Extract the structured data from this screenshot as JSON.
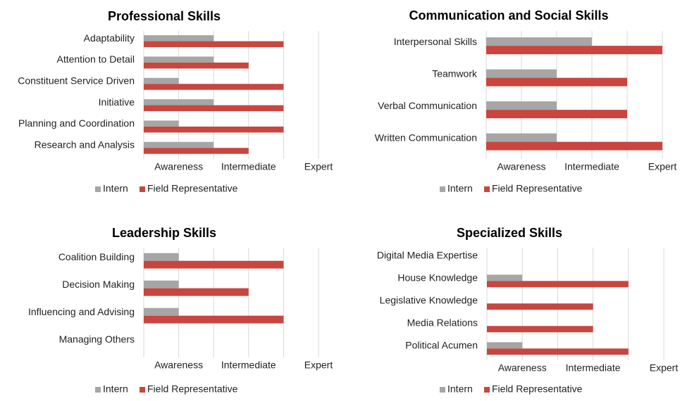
{
  "colors": {
    "intern": "#a6a6a6",
    "field_representative": "#c8463e",
    "grid": "#d9d9d9"
  },
  "chart_data": [
    {
      "type": "bar",
      "orientation": "horizontal",
      "title": "Professional Skills",
      "categories": [
        "Adaptability",
        "Attention to Detail",
        "Constituent Service Driven",
        "Initiative",
        "Planning and Coordination",
        "Research and Analysis"
      ],
      "series": [
        {
          "name": "Intern",
          "values": [
            2,
            2,
            1,
            2,
            1,
            2
          ]
        },
        {
          "name": "Field Representative",
          "values": [
            4,
            3,
            4,
            4,
            4,
            3
          ]
        }
      ],
      "tick_labels": [
        "Awareness",
        "Intermediate",
        "Expert"
      ],
      "xlim": [
        0,
        5
      ],
      "grid": true,
      "legend": "bottom"
    },
    {
      "type": "bar",
      "orientation": "horizontal",
      "title": "Communication and Social Skills",
      "categories": [
        "Interpersonal Skills",
        "Teamwork",
        "Verbal Communication",
        "Written Communication"
      ],
      "series": [
        {
          "name": "Intern",
          "values": [
            3,
            2,
            2,
            2
          ]
        },
        {
          "name": "Field Representative",
          "values": [
            5,
            4,
            4,
            5
          ]
        }
      ],
      "tick_labels": [
        "Awareness",
        "Intermediate",
        "Expert"
      ],
      "xlim": [
        0,
        5
      ],
      "grid": true,
      "legend": "bottom"
    },
    {
      "type": "bar",
      "orientation": "horizontal",
      "title": "Leadership Skills",
      "categories": [
        "Coalition Building",
        "Decision Making",
        "Influencing and Advising",
        "Managing Others"
      ],
      "series": [
        {
          "name": "Intern",
          "values": [
            1,
            1,
            1,
            0
          ]
        },
        {
          "name": "Field Representative",
          "values": [
            4,
            3,
            4,
            0
          ]
        }
      ],
      "tick_labels": [
        "Awareness",
        "Intermediate",
        "Expert"
      ],
      "xlim": [
        0,
        5
      ],
      "grid": true,
      "legend": "bottom"
    },
    {
      "type": "bar",
      "orientation": "horizontal",
      "title": "Specialized Skills",
      "categories": [
        "Digital Media Expertise",
        "House Knowledge",
        "Legislative Knowledge",
        "Media Relations",
        "Political Acumen"
      ],
      "series": [
        {
          "name": "Intern",
          "values": [
            0,
            1,
            0,
            0,
            1
          ]
        },
        {
          "name": "Field Representative",
          "values": [
            0,
            4,
            3,
            3,
            4
          ]
        }
      ],
      "tick_labels": [
        "Awareness",
        "Intermediate",
        "Expert"
      ],
      "xlim": [
        0,
        5
      ],
      "grid": true,
      "legend": "bottom"
    }
  ]
}
